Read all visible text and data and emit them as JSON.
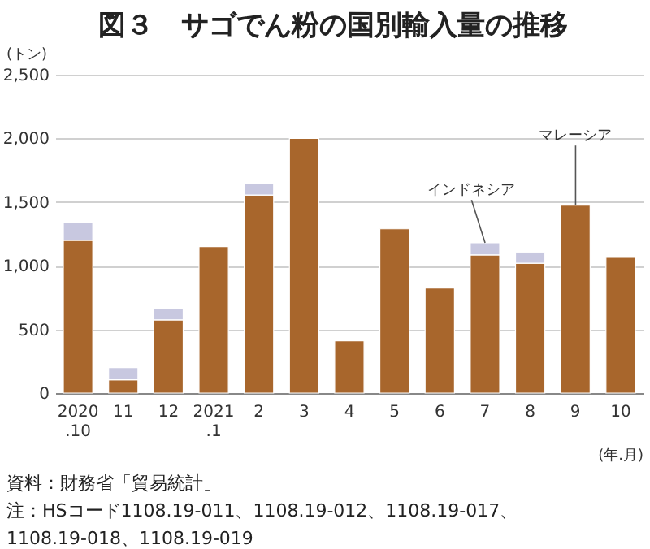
{
  "chart_data": {
    "type": "bar",
    "title": "図３　サゴでん粉の国別輸入量の推移",
    "ylabel": "(トン)",
    "xlabel": "(年.月)",
    "categories": [
      "2020\n.10",
      "11",
      "12",
      "2021\n.1",
      "2",
      "3",
      "4",
      "5",
      "6",
      "7",
      "8",
      "9",
      "10"
    ],
    "stacked": true,
    "series": [
      {
        "name": "マレーシア",
        "color": "#a8662c",
        "values": [
          1200,
          105,
          575,
          1150,
          1555,
          2000,
          410,
          1290,
          825,
          1085,
          1020,
          1475,
          1065
        ]
      },
      {
        "name": "インドネシア",
        "color": "#c8c8e0",
        "values": [
          140,
          95,
          85,
          null,
          95,
          null,
          null,
          null,
          null,
          95,
          85,
          null,
          null
        ]
      }
    ],
    "ylim": [
      0,
      2500
    ],
    "yticks": [
      0,
      {
        "value": 500,
        "label": "500"
      },
      {
        "value": 1000,
        "label": "1,000"
      },
      {
        "value": 1500,
        "label": "1,500"
      },
      {
        "value": 2000,
        "label": "2,000"
      },
      {
        "value": 2500,
        "label": "2,500"
      }
    ],
    "grid": "y",
    "legend": false,
    "annotations": [
      "資料：財務省「貿易統計」",
      "注：HSコード1108.19-011、1108.19-012、1108.19-017、\n1108.19-018、1108.19-019"
    ]
  }
}
